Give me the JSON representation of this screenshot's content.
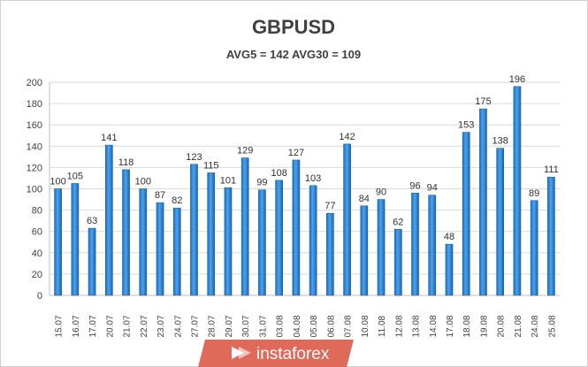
{
  "chart_data": {
    "type": "bar",
    "title": "GBPUSD",
    "subtitle": "AVG5 = 142 AVG30 = 109",
    "categories": [
      "15.07",
      "16.07",
      "17.07",
      "20.07",
      "21.07",
      "22.07",
      "23.07",
      "24.07",
      "27.07",
      "28.07",
      "29.07",
      "30.07",
      "31.07",
      "03.08",
      "04.08",
      "05.08",
      "06.08",
      "07.08",
      "10.08",
      "11.08",
      "12.08",
      "13.08",
      "14.08",
      "17.08",
      "18.08",
      "19.08",
      "20.08",
      "21.08",
      "24.08",
      "25.08"
    ],
    "values": [
      100,
      105,
      63,
      141,
      118,
      100,
      87,
      82,
      123,
      115,
      101,
      129,
      99,
      108,
      127,
      103,
      77,
      142,
      84,
      90,
      62,
      96,
      94,
      48,
      153,
      175,
      138,
      196,
      89,
      111
    ],
    "ylim": [
      0,
      200
    ],
    "yticks": [
      0,
      20,
      40,
      60,
      80,
      100,
      120,
      140,
      160,
      180,
      200
    ],
    "grid": true,
    "bar_color": "#2f86d6",
    "legend": "none"
  },
  "watermark": {
    "text": "instaforex",
    "color": "#e06a5a"
  }
}
